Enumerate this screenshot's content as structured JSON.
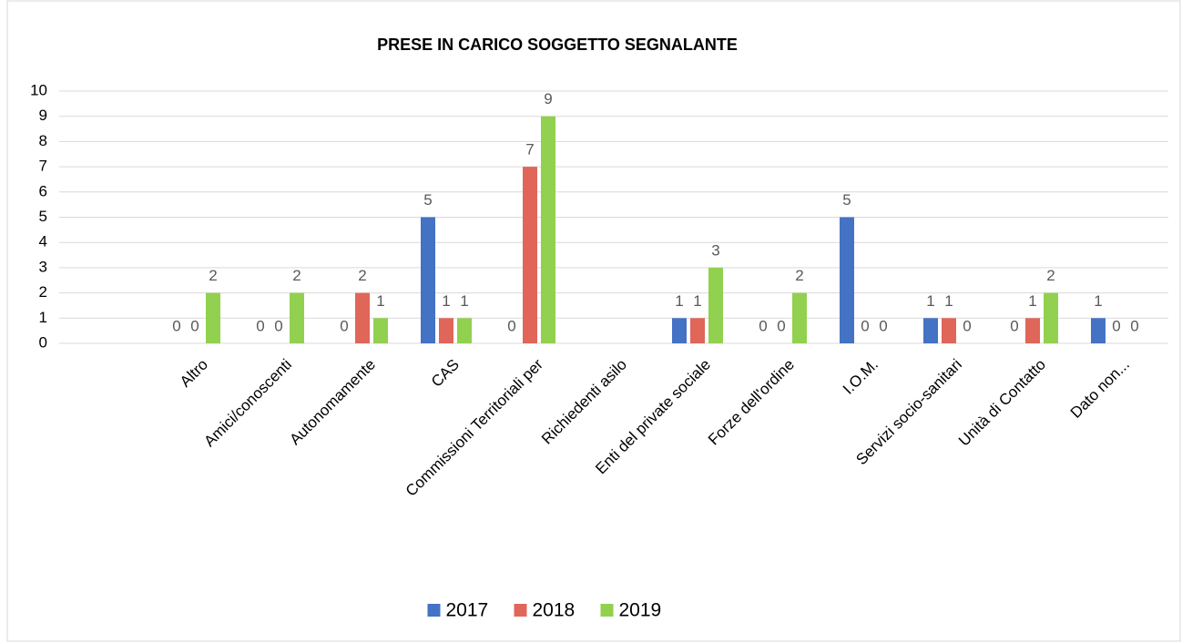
{
  "chart_data": {
    "type": "bar",
    "title": "PRESE IN CARICO SOGGETTO SEGNALANTE",
    "categories": [
      "Altro",
      "Amici/conoscenti",
      "Autonomamente",
      "CAS",
      "Commissioni Territoriali per",
      "Richiedenti asilo",
      "Enti del private sociale",
      "Forze dell'ordine",
      "I.O.M.",
      "Servizi socio-sanitari",
      "Unità di Contatto",
      "Dato non..."
    ],
    "series": [
      {
        "name": "2017",
        "color": "#4472c4",
        "values": [
          0,
          0,
          0,
          5,
          0,
          null,
          1,
          0,
          5,
          1,
          0,
          1
        ]
      },
      {
        "name": "2018",
        "color": "#e0665a",
        "values": [
          0,
          0,
          2,
          1,
          7,
          null,
          1,
          0,
          0,
          1,
          1,
          0
        ]
      },
      {
        "name": "2019",
        "color": "#92d050",
        "values": [
          2,
          2,
          1,
          1,
          9,
          null,
          3,
          2,
          0,
          0,
          2,
          0
        ]
      }
    ],
    "ylim": [
      0,
      10
    ],
    "yticks": [
      0,
      1,
      2,
      3,
      4,
      5,
      6,
      7,
      8,
      9,
      10
    ],
    "grid": true,
    "legend": "bottom"
  }
}
